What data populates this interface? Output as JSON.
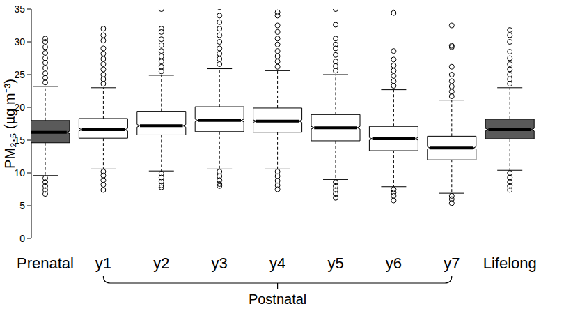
{
  "chart_data": {
    "type": "box",
    "y_label": "PM₂.₅ (µg m⁻³)",
    "categories": [
      "Prenatal",
      "y1",
      "y2",
      "y3",
      "y4",
      "y5",
      "y6",
      "y7",
      "Lifelong"
    ],
    "colors": [
      "#5a5a5a",
      "#ffffff",
      "#ffffff",
      "#ffffff",
      "#ffffff",
      "#ffffff",
      "#ffffff",
      "#ffffff",
      "#5a5a5a"
    ],
    "boxes": [
      {
        "min": 9.6,
        "q1": 14.6,
        "notch_lo": 16.0,
        "median": 16.2,
        "notch_hi": 16.4,
        "q3": 18.0,
        "max": 23.2,
        "outliers": [
          23.8,
          24.5,
          25.2,
          26,
          26.8,
          27.5,
          28.3,
          29.2,
          30,
          30.5,
          9.2,
          8.6,
          8,
          7.4,
          6.8
        ]
      },
      {
        "min": 10.6,
        "q1": 15.3,
        "notch_lo": 16.4,
        "median": 16.6,
        "notch_hi": 16.8,
        "q3": 18.3,
        "max": 23.0,
        "outliers": [
          23.6,
          24.3,
          25,
          25.8,
          26.6,
          27.4,
          28.2,
          29,
          30.2,
          31,
          32,
          10.2,
          9.6,
          8.9,
          8.2,
          7.4
        ]
      },
      {
        "min": 10.3,
        "q1": 15.8,
        "notch_lo": 17.0,
        "median": 17.2,
        "notch_hi": 17.4,
        "q3": 19.4,
        "max": 24.9,
        "outliers": [
          25.5,
          26.2,
          27,
          27.8,
          28.6,
          29.5,
          30.4,
          31.5,
          32,
          35,
          9.9,
          9.3,
          8.7,
          8.1,
          7.8
        ]
      },
      {
        "min": 10.6,
        "q1": 16.3,
        "notch_lo": 17.8,
        "median": 18.0,
        "notch_hi": 18.2,
        "q3": 20.1,
        "max": 25.9,
        "outliers": [
          26.6,
          27.4,
          28.2,
          29,
          30,
          31,
          32,
          33,
          34,
          35.3,
          10.2,
          9.5,
          8.9,
          8.3,
          8
        ]
      },
      {
        "min": 10.6,
        "q1": 16.2,
        "notch_lo": 17.7,
        "median": 17.9,
        "notch_hi": 18.1,
        "q3": 19.9,
        "max": 25.6,
        "outliers": [
          26.2,
          27,
          27.8,
          28.6,
          29.6,
          30.5,
          31.5,
          32.5,
          34,
          34.5,
          10.2,
          9.5,
          8.8,
          8.1,
          7.5
        ]
      },
      {
        "min": 9.0,
        "q1": 14.9,
        "notch_lo": 16.7,
        "median": 16.9,
        "notch_hi": 17.1,
        "q3": 18.9,
        "max": 25.0,
        "outliers": [
          25.6,
          26.3,
          27,
          28,
          29,
          29.6,
          30.5,
          32.6,
          35,
          8.6,
          8,
          7.4,
          6.8,
          6.2
        ]
      },
      {
        "min": 7.9,
        "q1": 13.4,
        "notch_lo": 15.0,
        "median": 15.2,
        "notch_hi": 15.4,
        "q3": 17.1,
        "max": 22.7,
        "outliers": [
          23.3,
          24,
          24.8,
          25.6,
          26.4,
          27.3,
          28.6,
          34.4,
          35.4,
          7.5,
          7,
          6.5,
          5.8
        ]
      },
      {
        "min": 6.9,
        "q1": 12.0,
        "notch_lo": 13.6,
        "median": 13.8,
        "notch_hi": 14.0,
        "q3": 15.6,
        "max": 21.1,
        "outliers": [
          21.7,
          22.4,
          23.2,
          24,
          25,
          26.2,
          29.2,
          29.4,
          32.5,
          6.5,
          6,
          5.4
        ]
      },
      {
        "min": 10.4,
        "q1": 15.2,
        "notch_lo": 16.4,
        "median": 16.6,
        "notch_hi": 16.8,
        "q3": 18.2,
        "max": 23.0,
        "outliers": [
          23.6,
          24.3,
          25,
          25.8,
          26.6,
          27.5,
          28.5,
          30,
          31,
          31.8,
          10,
          9.3,
          8.6,
          8,
          7.4
        ]
      }
    ],
    "ylim": [
      0,
      35
    ],
    "yticks": [
      0,
      5,
      10,
      15,
      20,
      25,
      30,
      35
    ],
    "annotations": [
      {
        "text": "Postnatal",
        "categories": [
          "y1",
          "y7"
        ]
      }
    ]
  }
}
